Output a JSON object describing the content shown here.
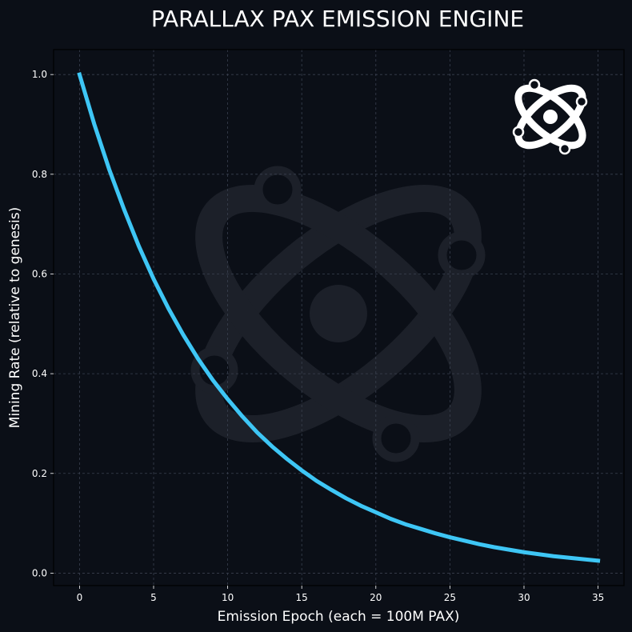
{
  "chart_data": {
    "type": "line",
    "title": "PARALLAX PAX EMISSION ENGINE",
    "xlabel": "Emission Epoch  (each = 100M PAX)",
    "ylabel": "Mining Rate  (relative to genesis)",
    "xlim": [
      -1.75,
      36.75
    ],
    "ylim": [
      -0.025,
      1.05
    ],
    "xticks": [
      0,
      5,
      10,
      15,
      20,
      25,
      30,
      35
    ],
    "yticks": [
      0.0,
      0.2,
      0.4,
      0.6,
      0.8,
      1.0
    ],
    "grid": true,
    "series": [
      {
        "x": [
          0,
          1,
          2,
          3,
          4,
          5,
          6,
          7,
          8,
          9,
          10,
          11,
          12,
          13,
          14,
          15,
          16,
          17,
          18,
          19,
          20,
          21,
          22,
          23,
          24,
          25,
          26,
          27,
          28,
          29,
          30,
          31,
          32,
          33,
          34,
          35
        ],
        "y": [
          1.0,
          0.9,
          0.81,
          0.73,
          0.656,
          0.59,
          0.531,
          0.478,
          0.43,
          0.387,
          0.349,
          0.314,
          0.282,
          0.254,
          0.229,
          0.206,
          0.185,
          0.167,
          0.15,
          0.135,
          0.122,
          0.109,
          0.098,
          0.089,
          0.08,
          0.072,
          0.065,
          0.058,
          0.052,
          0.047,
          0.042,
          0.038,
          0.034,
          0.031,
          0.028,
          0.025
        ]
      }
    ]
  },
  "colors": {
    "background": "#0b0f17",
    "plot_background": "#0b0f17",
    "line": "#3ec6f5",
    "grid": "#3a4150",
    "watermark": "#1c2029",
    "logo": "#ffffff"
  },
  "icons": {
    "logo": "atom-icon",
    "watermark": "atom-watermark-icon"
  }
}
